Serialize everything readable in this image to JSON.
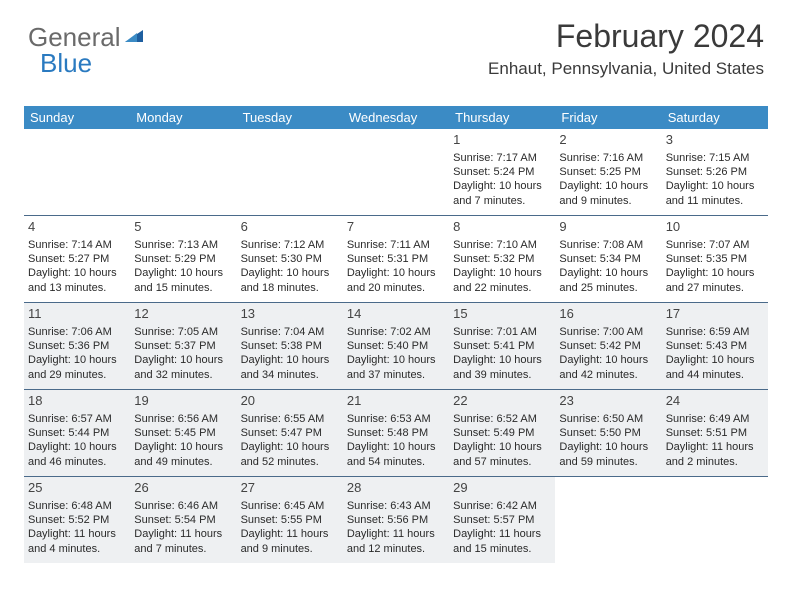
{
  "logo": {
    "text1": "General",
    "text2": "Blue"
  },
  "header": {
    "month_title": "February 2024",
    "location": "Enhaut, Pennsylvania, United States"
  },
  "colors": {
    "header_bg": "#3b8bc5",
    "header_text": "#ffffff",
    "alt_row_bg": "#eef0f2",
    "divider": "#4a6a8a",
    "text": "#2a2a2a",
    "title": "#3a3a3a"
  },
  "weekdays": [
    "Sunday",
    "Monday",
    "Tuesday",
    "Wednesday",
    "Thursday",
    "Friday",
    "Saturday"
  ],
  "grid": [
    [
      {
        "n": "",
        "alt": false
      },
      {
        "n": "",
        "alt": false
      },
      {
        "n": "",
        "alt": false
      },
      {
        "n": "",
        "alt": false
      },
      {
        "n": "1",
        "alt": false,
        "sr": "Sunrise: 7:17 AM",
        "ss": "Sunset: 5:24 PM",
        "d1": "Daylight: 10 hours",
        "d2": "and 7 minutes."
      },
      {
        "n": "2",
        "alt": false,
        "sr": "Sunrise: 7:16 AM",
        "ss": "Sunset: 5:25 PM",
        "d1": "Daylight: 10 hours",
        "d2": "and 9 minutes."
      },
      {
        "n": "3",
        "alt": false,
        "sr": "Sunrise: 7:15 AM",
        "ss": "Sunset: 5:26 PM",
        "d1": "Daylight: 10 hours",
        "d2": "and 11 minutes."
      }
    ],
    [
      {
        "n": "4",
        "alt": false,
        "sr": "Sunrise: 7:14 AM",
        "ss": "Sunset: 5:27 PM",
        "d1": "Daylight: 10 hours",
        "d2": "and 13 minutes."
      },
      {
        "n": "5",
        "alt": false,
        "sr": "Sunrise: 7:13 AM",
        "ss": "Sunset: 5:29 PM",
        "d1": "Daylight: 10 hours",
        "d2": "and 15 minutes."
      },
      {
        "n": "6",
        "alt": false,
        "sr": "Sunrise: 7:12 AM",
        "ss": "Sunset: 5:30 PM",
        "d1": "Daylight: 10 hours",
        "d2": "and 18 minutes."
      },
      {
        "n": "7",
        "alt": false,
        "sr": "Sunrise: 7:11 AM",
        "ss": "Sunset: 5:31 PM",
        "d1": "Daylight: 10 hours",
        "d2": "and 20 minutes."
      },
      {
        "n": "8",
        "alt": false,
        "sr": "Sunrise: 7:10 AM",
        "ss": "Sunset: 5:32 PM",
        "d1": "Daylight: 10 hours",
        "d2": "and 22 minutes."
      },
      {
        "n": "9",
        "alt": false,
        "sr": "Sunrise: 7:08 AM",
        "ss": "Sunset: 5:34 PM",
        "d1": "Daylight: 10 hours",
        "d2": "and 25 minutes."
      },
      {
        "n": "10",
        "alt": false,
        "sr": "Sunrise: 7:07 AM",
        "ss": "Sunset: 5:35 PM",
        "d1": "Daylight: 10 hours",
        "d2": "and 27 minutes."
      }
    ],
    [
      {
        "n": "11",
        "alt": true,
        "sr": "Sunrise: 7:06 AM",
        "ss": "Sunset: 5:36 PM",
        "d1": "Daylight: 10 hours",
        "d2": "and 29 minutes."
      },
      {
        "n": "12",
        "alt": true,
        "sr": "Sunrise: 7:05 AM",
        "ss": "Sunset: 5:37 PM",
        "d1": "Daylight: 10 hours",
        "d2": "and 32 minutes."
      },
      {
        "n": "13",
        "alt": true,
        "sr": "Sunrise: 7:04 AM",
        "ss": "Sunset: 5:38 PM",
        "d1": "Daylight: 10 hours",
        "d2": "and 34 minutes."
      },
      {
        "n": "14",
        "alt": true,
        "sr": "Sunrise: 7:02 AM",
        "ss": "Sunset: 5:40 PM",
        "d1": "Daylight: 10 hours",
        "d2": "and 37 minutes."
      },
      {
        "n": "15",
        "alt": true,
        "sr": "Sunrise: 7:01 AM",
        "ss": "Sunset: 5:41 PM",
        "d1": "Daylight: 10 hours",
        "d2": "and 39 minutes."
      },
      {
        "n": "16",
        "alt": true,
        "sr": "Sunrise: 7:00 AM",
        "ss": "Sunset: 5:42 PM",
        "d1": "Daylight: 10 hours",
        "d2": "and 42 minutes."
      },
      {
        "n": "17",
        "alt": true,
        "sr": "Sunrise: 6:59 AM",
        "ss": "Sunset: 5:43 PM",
        "d1": "Daylight: 10 hours",
        "d2": "and 44 minutes."
      }
    ],
    [
      {
        "n": "18",
        "alt": true,
        "sr": "Sunrise: 6:57 AM",
        "ss": "Sunset: 5:44 PM",
        "d1": "Daylight: 10 hours",
        "d2": "and 46 minutes."
      },
      {
        "n": "19",
        "alt": true,
        "sr": "Sunrise: 6:56 AM",
        "ss": "Sunset: 5:45 PM",
        "d1": "Daylight: 10 hours",
        "d2": "and 49 minutes."
      },
      {
        "n": "20",
        "alt": true,
        "sr": "Sunrise: 6:55 AM",
        "ss": "Sunset: 5:47 PM",
        "d1": "Daylight: 10 hours",
        "d2": "and 52 minutes."
      },
      {
        "n": "21",
        "alt": true,
        "sr": "Sunrise: 6:53 AM",
        "ss": "Sunset: 5:48 PM",
        "d1": "Daylight: 10 hours",
        "d2": "and 54 minutes."
      },
      {
        "n": "22",
        "alt": true,
        "sr": "Sunrise: 6:52 AM",
        "ss": "Sunset: 5:49 PM",
        "d1": "Daylight: 10 hours",
        "d2": "and 57 minutes."
      },
      {
        "n": "23",
        "alt": true,
        "sr": "Sunrise: 6:50 AM",
        "ss": "Sunset: 5:50 PM",
        "d1": "Daylight: 10 hours",
        "d2": "and 59 minutes."
      },
      {
        "n": "24",
        "alt": true,
        "sr": "Sunrise: 6:49 AM",
        "ss": "Sunset: 5:51 PM",
        "d1": "Daylight: 11 hours",
        "d2": "and 2 minutes."
      }
    ],
    [
      {
        "n": "25",
        "alt": true,
        "sr": "Sunrise: 6:48 AM",
        "ss": "Sunset: 5:52 PM",
        "d1": "Daylight: 11 hours",
        "d2": "and 4 minutes."
      },
      {
        "n": "26",
        "alt": true,
        "sr": "Sunrise: 6:46 AM",
        "ss": "Sunset: 5:54 PM",
        "d1": "Daylight: 11 hours",
        "d2": "and 7 minutes."
      },
      {
        "n": "27",
        "alt": true,
        "sr": "Sunrise: 6:45 AM",
        "ss": "Sunset: 5:55 PM",
        "d1": "Daylight: 11 hours",
        "d2": "and 9 minutes."
      },
      {
        "n": "28",
        "alt": true,
        "sr": "Sunrise: 6:43 AM",
        "ss": "Sunset: 5:56 PM",
        "d1": "Daylight: 11 hours",
        "d2": "and 12 minutes."
      },
      {
        "n": "29",
        "alt": true,
        "sr": "Sunrise: 6:42 AM",
        "ss": "Sunset: 5:57 PM",
        "d1": "Daylight: 11 hours",
        "d2": "and 15 minutes."
      },
      {
        "n": "",
        "alt": false
      },
      {
        "n": "",
        "alt": false
      }
    ]
  ]
}
